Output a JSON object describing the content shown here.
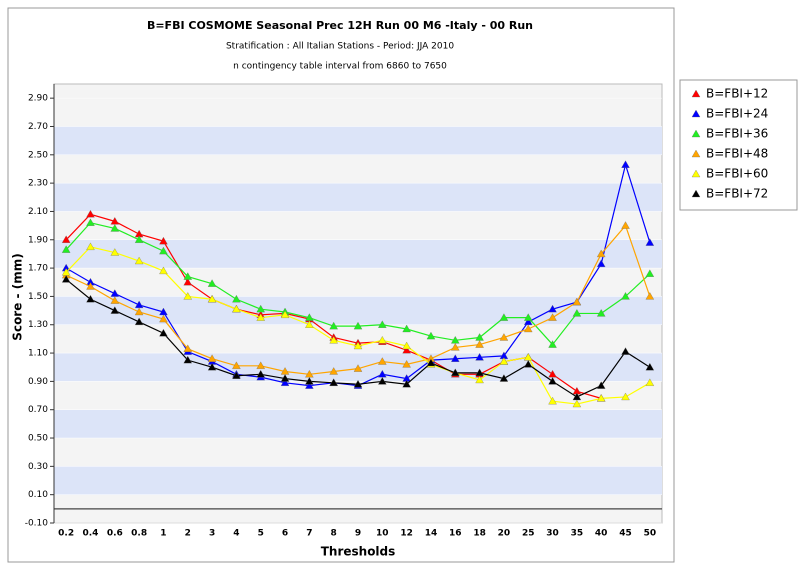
{
  "chart_data": {
    "type": "line",
    "title": "B=FBI  COSMOME Seasonal Prec 12H Run 00 M6 -Italy - 00 Run",
    "subtitle": "Stratification : All Italian Stations - Period: JJA 2010",
    "subtitle2": "n contingency table interval from 6860 to 7650",
    "x_label": "Thresholds",
    "y_label": "Score - (mm)",
    "categories": [
      "0.2",
      "0.4",
      "0.6",
      "0.8",
      "1",
      "2",
      "3",
      "4",
      "5",
      "6",
      "7",
      "8",
      "9",
      "10",
      "12",
      "14",
      "16",
      "18",
      "20",
      "25",
      "30",
      "35",
      "40",
      "45",
      "50"
    ],
    "ylim": [
      -0.1,
      3.0
    ],
    "yticks": [
      {
        "value": -0.1,
        "label": "-0.10"
      },
      {
        "value": 0.1,
        "label": "0.10"
      },
      {
        "value": 0.3,
        "label": "0.30"
      },
      {
        "value": 0.5,
        "label": "0.50"
      },
      {
        "value": 0.7,
        "label": "0.70"
      },
      {
        "value": 0.9,
        "label": "0.90"
      },
      {
        "value": 1.1,
        "label": "1.10"
      },
      {
        "value": 1.3,
        "label": "1.30"
      },
      {
        "value": 1.5,
        "label": "1.50"
      },
      {
        "value": 1.7,
        "label": "1.70"
      },
      {
        "value": 1.9,
        "label": "1.90"
      },
      {
        "value": 2.1,
        "label": "2.10"
      },
      {
        "value": 2.3,
        "label": "2.30"
      },
      {
        "value": 2.5,
        "label": "2.50"
      },
      {
        "value": 2.7,
        "label": "2.70"
      },
      {
        "value": 2.9,
        "label": "2.90"
      }
    ],
    "legend": "right",
    "series": [
      {
        "name": "B=FBI+12",
        "color": "#ff0000",
        "values": [
          1.9,
          2.08,
          2.03,
          1.94,
          1.89,
          1.6,
          1.48,
          1.41,
          1.37,
          1.38,
          1.34,
          1.21,
          1.17,
          1.18,
          1.12,
          1.05,
          0.95,
          0.95,
          1.04,
          1.07,
          0.95,
          0.83,
          0.78,
          null,
          null
        ]
      },
      {
        "name": "B=FBI+24",
        "color": "#0000ff",
        "values": [
          1.7,
          1.6,
          1.52,
          1.44,
          1.39,
          1.11,
          1.04,
          0.95,
          0.93,
          0.89,
          0.87,
          0.89,
          0.87,
          0.95,
          0.92,
          1.05,
          1.06,
          1.07,
          1.08,
          1.32,
          1.41,
          1.46,
          1.73,
          2.43,
          1.88
        ]
      },
      {
        "name": "B=FBI+36",
        "color": "#22ee22",
        "values": [
          1.83,
          2.02,
          1.98,
          1.9,
          1.82,
          1.64,
          1.59,
          1.48,
          1.41,
          1.39,
          1.35,
          1.29,
          1.29,
          1.3,
          1.27,
          1.22,
          1.19,
          1.21,
          1.35,
          1.35,
          1.16,
          1.38,
          1.38,
          1.5,
          1.66
        ]
      },
      {
        "name": "B=FBI+48",
        "color": "#ffa500",
        "values": [
          1.65,
          1.57,
          1.47,
          1.39,
          1.34,
          1.13,
          1.06,
          1.01,
          1.01,
          0.97,
          0.95,
          0.97,
          0.99,
          1.04,
          1.02,
          1.06,
          1.14,
          1.16,
          1.21,
          1.27,
          1.35,
          1.46,
          1.8,
          2.0,
          1.5
        ]
      },
      {
        "name": "B=FBI+60",
        "color": "#ffff00",
        "values": [
          1.67,
          1.85,
          1.81,
          1.75,
          1.68,
          1.5,
          1.48,
          1.41,
          1.35,
          1.37,
          1.3,
          1.19,
          1.15,
          1.19,
          1.15,
          1.02,
          0.96,
          0.91,
          1.04,
          1.07,
          0.76,
          0.74,
          0.78,
          0.79,
          0.89
        ]
      },
      {
        "name": "B=FBI+72",
        "color": "#000000",
        "values": [
          1.62,
          1.48,
          1.4,
          1.32,
          1.24,
          1.05,
          1.0,
          0.94,
          0.95,
          0.92,
          0.9,
          0.89,
          0.88,
          0.9,
          0.88,
          1.03,
          0.96,
          0.96,
          0.92,
          1.02,
          0.9,
          0.79,
          0.87,
          1.11,
          1.0
        ]
      }
    ]
  }
}
